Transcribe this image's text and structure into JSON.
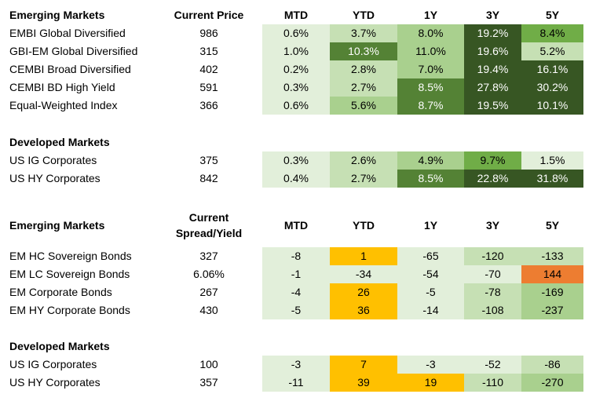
{
  "colors": {
    "g0": "#e2efda",
    "g1": "#c6e0b4",
    "g2": "#a9d08e",
    "g3": "#70ad47",
    "g4": "#548235",
    "g5": "#375623",
    "amber": "#ffc000",
    "orange": "#ed7d31"
  },
  "perf": {
    "header": {
      "group": "Emerging Markets",
      "price": "Current Price",
      "mtd": "MTD",
      "ytd": "YTD",
      "y1": "1Y",
      "y3": "3Y",
      "y5": "5Y"
    },
    "em_rows": [
      {
        "name": "EMBI Global Diversified",
        "price": "986",
        "mtd": "0.6%",
        "ytd": "3.7%",
        "y1": "8.0%",
        "y3": "19.2%",
        "y5": "8.4%",
        "shade": {
          "mtd": "g0",
          "ytd": "g1",
          "y1": "g2",
          "y3": "g5",
          "y5": "g3"
        }
      },
      {
        "name": "GBI-EM Global Diversified",
        "price": "315",
        "mtd": "1.0%",
        "ytd": "10.3%",
        "y1": "11.0%",
        "y3": "19.6%",
        "y5": "5.2%",
        "shade": {
          "mtd": "g0",
          "ytd": "g4",
          "y1": "g2",
          "y3": "g5",
          "y5": "g1"
        }
      },
      {
        "name": "CEMBI Broad Diversified",
        "price": "402",
        "mtd": "0.2%",
        "ytd": "2.8%",
        "y1": "7.0%",
        "y3": "19.4%",
        "y5": "16.1%",
        "shade": {
          "mtd": "g0",
          "ytd": "g1",
          "y1": "g2",
          "y3": "g5",
          "y5": "g5"
        }
      },
      {
        "name": "CEMBI BD High Yield",
        "price": "591",
        "mtd": "0.3%",
        "ytd": "2.7%",
        "y1": "8.5%",
        "y3": "27.8%",
        "y5": "30.2%",
        "shade": {
          "mtd": "g0",
          "ytd": "g1",
          "y1": "g4",
          "y3": "g5",
          "y5": "g5"
        }
      },
      {
        "name": "Equal-Weighted Index",
        "price": "366",
        "mtd": "0.6%",
        "ytd": "5.6%",
        "y1": "8.7%",
        "y3": "19.5%",
        "y5": "10.1%",
        "shade": {
          "mtd": "g0",
          "ytd": "g2",
          "y1": "g4",
          "y3": "g5",
          "y5": "g5"
        }
      }
    ],
    "dm_title": "Developed Markets",
    "dm_rows": [
      {
        "name": "US IG Corporates",
        "price": "375",
        "mtd": "0.3%",
        "ytd": "2.6%",
        "y1": "4.9%",
        "y3": "9.7%",
        "y5": "1.5%",
        "shade": {
          "mtd": "g0",
          "ytd": "g1",
          "y1": "g2",
          "y3": "g3",
          "y5": "g0"
        }
      },
      {
        "name": "US HY Corporates",
        "price": "842",
        "mtd": "0.4%",
        "ytd": "2.7%",
        "y1": "8.5%",
        "y3": "22.8%",
        "y5": "31.8%",
        "shade": {
          "mtd": "g0",
          "ytd": "g1",
          "y1": "g4",
          "y3": "g5",
          "y5": "g5"
        }
      }
    ]
  },
  "spread": {
    "header": {
      "group": "Emerging Markets",
      "price_line1": "Current",
      "price_line2": "Spread/Yield",
      "mtd": "MTD",
      "ytd": "YTD",
      "y1": "1Y",
      "y3": "3Y",
      "y5": "5Y"
    },
    "em_rows": [
      {
        "name": "EM HC Sovereign Bonds",
        "price": "327",
        "mtd": "-8",
        "ytd": "1",
        "y1": "-65",
        "y3": "-120",
        "y5": "-133",
        "shade": {
          "mtd": "g0",
          "ytd": "amber",
          "y1": "g0",
          "y3": "g1",
          "y5": "g1"
        }
      },
      {
        "name": "EM LC Sovereign Bonds",
        "price": "6.06%",
        "mtd": "-1",
        "ytd": "-34",
        "y1": "-54",
        "y3": "-70",
        "y5": "144",
        "shade": {
          "mtd": "g0",
          "ytd": "g0",
          "y1": "g0",
          "y3": "g0",
          "y5": "orange"
        }
      },
      {
        "name": "EM Corporate Bonds",
        "price": "267",
        "mtd": "-4",
        "ytd": "26",
        "y1": "-5",
        "y3": "-78",
        "y5": "-169",
        "shade": {
          "mtd": "g0",
          "ytd": "amber",
          "y1": "g0",
          "y3": "g1",
          "y5": "g2"
        }
      },
      {
        "name": "EM HY Corporate Bonds",
        "price": "430",
        "mtd": "-5",
        "ytd": "36",
        "y1": "-14",
        "y3": "-108",
        "y5": "-237",
        "shade": {
          "mtd": "g0",
          "ytd": "amber",
          "y1": "g0",
          "y3": "g1",
          "y5": "g2"
        }
      }
    ],
    "dm_title": "Developed Markets",
    "dm_rows": [
      {
        "name": "US IG Corporates",
        "price": "100",
        "mtd": "-3",
        "ytd": "7",
        "y1": "-3",
        "y3": "-52",
        "y5": "-86",
        "shade": {
          "mtd": "g0",
          "ytd": "amber",
          "y1": "g0",
          "y3": "g0",
          "y5": "g1"
        }
      },
      {
        "name": "US HY Corporates",
        "price": "357",
        "mtd": "-11",
        "ytd": "39",
        "y1": "19",
        "y3": "-110",
        "y5": "-270",
        "shade": {
          "mtd": "g0",
          "ytd": "amber",
          "y1": "amber",
          "y3": "g1",
          "y5": "g2"
        }
      }
    ]
  }
}
